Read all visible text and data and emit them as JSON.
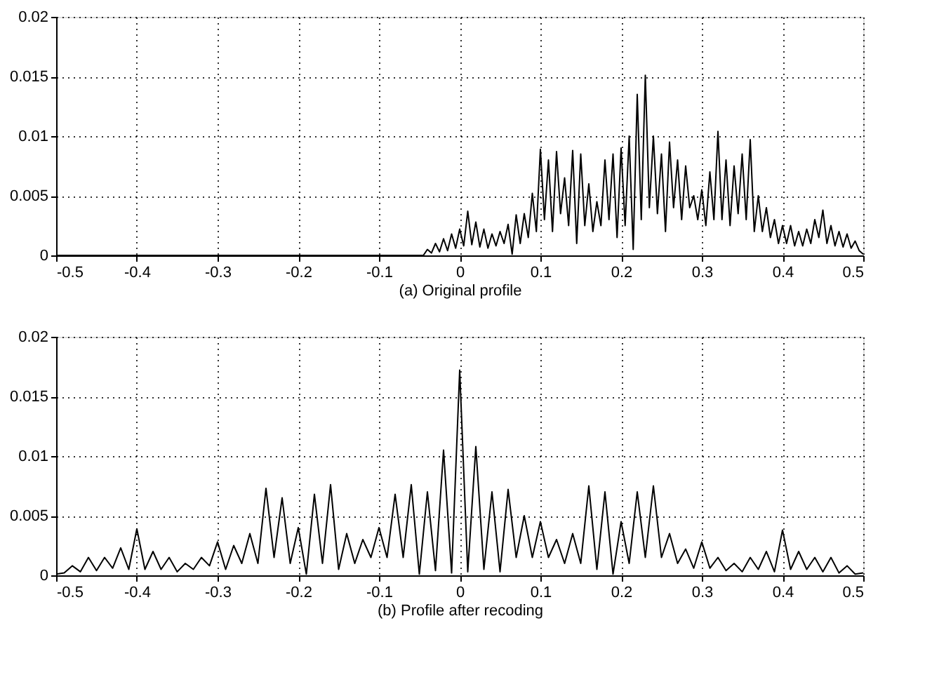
{
  "chart_data": [
    {
      "type": "line",
      "xlabel": "(a) Original profile",
      "xlim": [
        -0.5,
        0.5
      ],
      "xticks": [
        -0.5,
        -0.4,
        -0.3,
        -0.2,
        -0.1,
        0,
        0.1,
        0.2,
        0.3,
        0.4,
        0.5
      ],
      "ylim": [
        0,
        0.02
      ],
      "yticks": [
        0,
        0.005,
        0.01,
        0.015,
        0.02
      ],
      "grid": true,
      "marker": "none",
      "line_style": "solid",
      "series": [
        {
          "color": "#000000",
          "x": [
            -0.5,
            -0.045,
            -0.04,
            -0.035,
            -0.03,
            -0.025,
            -0.02,
            -0.015,
            -0.01,
            -0.005,
            0,
            0.005,
            0.01,
            0.015,
            0.02,
            0.025,
            0.03,
            0.035,
            0.04,
            0.045,
            0.05,
            0.055,
            0.06,
            0.065,
            0.07,
            0.075,
            0.08,
            0.085,
            0.09,
            0.095,
            0.1,
            0.105,
            0.11,
            0.115,
            0.12,
            0.125,
            0.13,
            0.135,
            0.14,
            0.145,
            0.15,
            0.155,
            0.16,
            0.165,
            0.17,
            0.175,
            0.18,
            0.185,
            0.19,
            0.195,
            0.2,
            0.205,
            0.21,
            0.215,
            0.22,
            0.225,
            0.23,
            0.235,
            0.24,
            0.245,
            0.25,
            0.255,
            0.26,
            0.265,
            0.27,
            0.275,
            0.28,
            0.285,
            0.29,
            0.295,
            0.3,
            0.305,
            0.31,
            0.315,
            0.32,
            0.325,
            0.33,
            0.335,
            0.34,
            0.345,
            0.35,
            0.355,
            0.36,
            0.365,
            0.37,
            0.375,
            0.38,
            0.385,
            0.39,
            0.395,
            0.4,
            0.405,
            0.41,
            0.415,
            0.42,
            0.425,
            0.43,
            0.435,
            0.44,
            0.445,
            0.45,
            0.455,
            0.46,
            0.465,
            0.47,
            0.475,
            0.48,
            0.485,
            0.49,
            0.495,
            0.5
          ],
          "values": [
            0,
            0,
            0.0005,
            0.0002,
            0.001,
            0.0003,
            0.0014,
            0.0004,
            0.0018,
            0.0006,
            0.0022,
            0.0008,
            0.0037,
            0.0009,
            0.0028,
            0.0007,
            0.0022,
            0.0006,
            0.0018,
            0.0008,
            0.002,
            0.001,
            0.0026,
            0.0001,
            0.0034,
            0.001,
            0.0035,
            0.0015,
            0.0052,
            0.002,
            0.0089,
            0.003,
            0.008,
            0.002,
            0.0087,
            0.0035,
            0.0065,
            0.0025,
            0.0088,
            0.001,
            0.0085,
            0.0025,
            0.006,
            0.002,
            0.0045,
            0.0025,
            0.008,
            0.003,
            0.0085,
            0.0015,
            0.009,
            0.0025,
            0.01,
            0.0005,
            0.0135,
            0.003,
            0.0151,
            0.004,
            0.01,
            0.0035,
            0.0085,
            0.002,
            0.0095,
            0.004,
            0.008,
            0.003,
            0.0075,
            0.004,
            0.005,
            0.003,
            0.0055,
            0.0025,
            0.007,
            0.003,
            0.0104,
            0.003,
            0.008,
            0.0025,
            0.0075,
            0.0035,
            0.0085,
            0.003,
            0.0097,
            0.002,
            0.005,
            0.002,
            0.004,
            0.0015,
            0.003,
            0.001,
            0.0025,
            0.001,
            0.0025,
            0.0008,
            0.002,
            0.0008,
            0.0022,
            0.001,
            0.003,
            0.0015,
            0.0038,
            0.001,
            0.0025,
            0.0008,
            0.002,
            0.0007,
            0.0018,
            0.0006,
            0.0012,
            0.0004,
            0.0001
          ]
        }
      ]
    },
    {
      "type": "line",
      "xlabel": "(b) Profile after recoding",
      "xlim": [
        -0.5,
        0.5
      ],
      "xticks": [
        -0.5,
        -0.4,
        -0.3,
        -0.2,
        -0.1,
        0,
        0.1,
        0.2,
        0.3,
        0.4,
        0.5
      ],
      "ylim": [
        0,
        0.02
      ],
      "yticks": [
        0,
        0.005,
        0.01,
        0.015,
        0.02
      ],
      "grid": true,
      "marker": "none",
      "line_style": "solid",
      "series": [
        {
          "color": "#000000",
          "x": [
            -0.5,
            -0.49,
            -0.48,
            -0.47,
            -0.46,
            -0.45,
            -0.44,
            -0.43,
            -0.42,
            -0.41,
            -0.4,
            -0.39,
            -0.38,
            -0.37,
            -0.36,
            -0.35,
            -0.34,
            -0.33,
            -0.32,
            -0.31,
            -0.3,
            -0.29,
            -0.28,
            -0.27,
            -0.26,
            -0.25,
            -0.24,
            -0.23,
            -0.22,
            -0.21,
            -0.2,
            -0.19,
            -0.18,
            -0.17,
            -0.16,
            -0.15,
            -0.14,
            -0.13,
            -0.12,
            -0.11,
            -0.1,
            -0.09,
            -0.08,
            -0.07,
            -0.06,
            -0.05,
            -0.04,
            -0.03,
            -0.02,
            -0.01,
            0,
            0.01,
            0.02,
            0.03,
            0.04,
            0.05,
            0.06,
            0.07,
            0.08,
            0.09,
            0.1,
            0.11,
            0.12,
            0.13,
            0.14,
            0.15,
            0.16,
            0.17,
            0.18,
            0.19,
            0.2,
            0.21,
            0.22,
            0.23,
            0.24,
            0.25,
            0.26,
            0.27,
            0.28,
            0.29,
            0.3,
            0.31,
            0.32,
            0.33,
            0.34,
            0.35,
            0.36,
            0.37,
            0.38,
            0.39,
            0.4,
            0.41,
            0.42,
            0.43,
            0.44,
            0.45,
            0.46,
            0.47,
            0.48,
            0.49,
            0.5
          ],
          "values": [
            0.0001,
            0.0002,
            0.0008,
            0.0003,
            0.0015,
            0.0004,
            0.0015,
            0.0006,
            0.0023,
            0.0005,
            0.0039,
            0.0005,
            0.002,
            0.0005,
            0.0015,
            0.0003,
            0.001,
            0.0005,
            0.0015,
            0.0008,
            0.0028,
            0.0005,
            0.0025,
            0.001,
            0.0035,
            0.001,
            0.0073,
            0.0015,
            0.0065,
            0.001,
            0.004,
            0.0001,
            0.0068,
            0.001,
            0.0076,
            0.0005,
            0.0035,
            0.001,
            0.003,
            0.0015,
            0.004,
            0.0015,
            0.0068,
            0.0015,
            0.0076,
            0.0001,
            0.007,
            0.0004,
            0.0105,
            0.0002,
            0.0172,
            0.0003,
            0.0108,
            0.0005,
            0.007,
            0.0003,
            0.0072,
            0.0015,
            0.005,
            0.0015,
            0.0045,
            0.0015,
            0.003,
            0.001,
            0.0035,
            0.001,
            0.0075,
            0.0005,
            0.007,
            0.0001,
            0.0045,
            0.001,
            0.007,
            0.0015,
            0.0075,
            0.0015,
            0.0035,
            0.001,
            0.0022,
            0.0006,
            0.0028,
            0.0006,
            0.0015,
            0.0004,
            0.001,
            0.0003,
            0.0015,
            0.0005,
            0.002,
            0.0003,
            0.0038,
            0.0005,
            0.002,
            0.0005,
            0.0015,
            0.0003,
            0.0015,
            0.0002,
            0.0008,
            0.0001,
            0.0002
          ]
        }
      ]
    }
  ]
}
